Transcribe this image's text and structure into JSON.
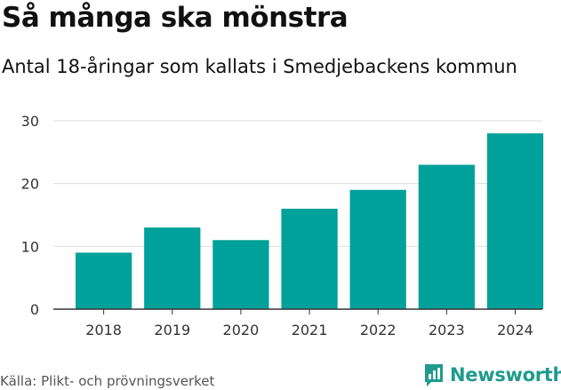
{
  "header": {
    "title": "Så många ska mönstra",
    "subtitle": "Antal 18-åringar som kallats i Smedjebackens kommun"
  },
  "footer": {
    "source": "Källa: Plikt- och prövningsverket",
    "brand": "Newsworthy"
  },
  "colors": {
    "bar": "#00a19a",
    "grid": "#dddddd",
    "axis": "#333333",
    "brand": "#1f9a8c"
  },
  "chart_data": {
    "type": "bar",
    "title": "Så många ska mönstra",
    "subtitle": "Antal 18-åringar som kallats i Smedjebackens kommun",
    "categories": [
      "2018",
      "2019",
      "2020",
      "2021",
      "2022",
      "2023",
      "2024"
    ],
    "values": [
      9,
      13,
      11,
      16,
      19,
      23,
      28
    ],
    "ylim": [
      0,
      30
    ],
    "yticks": [
      0,
      10,
      20,
      30
    ],
    "xlabel": "",
    "ylabel": "",
    "grid": true
  }
}
